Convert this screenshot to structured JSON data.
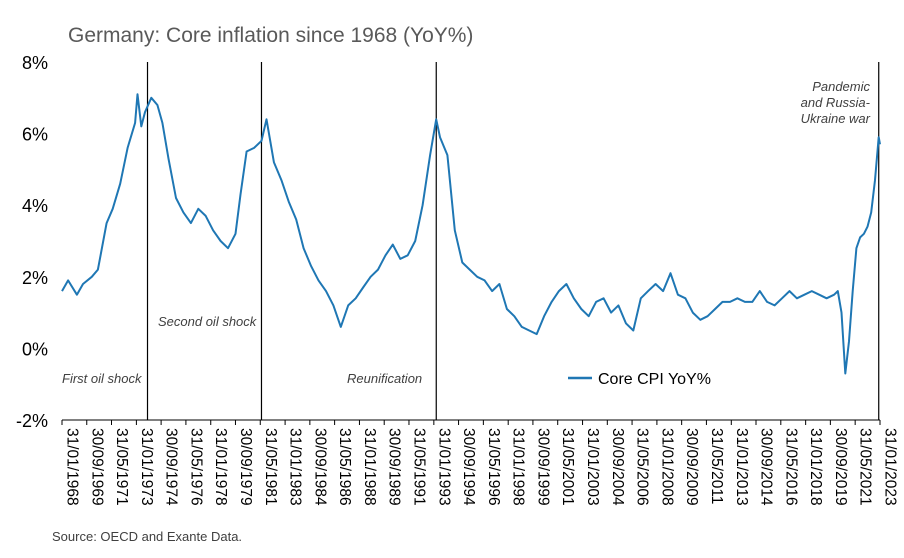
{
  "chart_data": {
    "type": "line",
    "title": "Germany: Core inflation since 1968 (YoY%)",
    "source": "Source: OECD and Exante Data.",
    "ylim": [
      -2,
      8
    ],
    "y_ticks": [
      "8%",
      "6%",
      "4%",
      "2%",
      "0%",
      "-2%"
    ],
    "y_tick_values": [
      8,
      6,
      4,
      2,
      0,
      -2
    ],
    "x_range": [
      "1968-01-31",
      "2023-01-31"
    ],
    "x_tick_labels": [
      "31/01/1968",
      "30/09/1969",
      "31/05/1971",
      "31/01/1973",
      "30/09/1974",
      "31/05/1976",
      "31/01/1978",
      "30/09/1979",
      "31/05/1981",
      "31/01/1983",
      "30/09/1984",
      "31/05/1986",
      "31/01/1988",
      "30/09/1989",
      "31/05/1991",
      "31/01/1993",
      "30/09/1994",
      "31/05/1996",
      "31/01/1998",
      "30/09/1999",
      "31/05/2001",
      "31/01/2003",
      "30/09/2004",
      "31/05/2006",
      "31/01/2008",
      "30/09/2009",
      "31/05/2011",
      "31/01/2013",
      "30/09/2014",
      "31/05/2016",
      "31/01/2018",
      "30/09/2019",
      "31/05/2021",
      "31/01/2023"
    ],
    "x_tick_dates": [
      "1968-01-31",
      "1969-09-30",
      "1971-05-31",
      "1973-01-31",
      "1974-09-30",
      "1976-05-31",
      "1978-01-31",
      "1979-09-30",
      "1981-05-31",
      "1983-01-31",
      "1984-09-30",
      "1986-05-31",
      "1988-01-31",
      "1989-09-30",
      "1991-05-31",
      "1993-01-31",
      "1994-09-30",
      "1996-05-31",
      "1998-01-31",
      "1999-09-30",
      "2001-05-31",
      "2003-01-31",
      "2004-09-30",
      "2006-05-31",
      "2008-01-31",
      "2009-09-30",
      "2011-05-31",
      "2013-01-31",
      "2014-09-30",
      "2016-05-31",
      "2018-01-31",
      "2019-09-30",
      "2021-05-31",
      "2023-01-31"
    ],
    "grid": false,
    "legend_position": "lower-right",
    "series": [
      {
        "name": "Core CPI YoY%",
        "color": "#1F77B4",
        "x": [
          "1968-01-31",
          "1968-06-30",
          "1969-01-31",
          "1969-06-30",
          "1970-01-31",
          "1970-06-30",
          "1971-01-31",
          "1971-06-30",
          "1971-12-31",
          "1972-06-30",
          "1972-12-31",
          "1973-02-28",
          "1973-05-31",
          "1973-08-31",
          "1974-01-31",
          "1974-06-30",
          "1974-10-31",
          "1975-03-31",
          "1975-09-30",
          "1976-03-31",
          "1976-09-30",
          "1977-03-31",
          "1977-09-30",
          "1978-03-31",
          "1978-09-30",
          "1979-03-31",
          "1979-09-30",
          "1980-01-31",
          "1980-06-30",
          "1980-12-31",
          "1981-06-30",
          "1981-10-31",
          "1982-04-30",
          "1982-10-31",
          "1983-04-30",
          "1983-10-31",
          "1984-04-30",
          "1984-10-31",
          "1985-04-30",
          "1985-10-31",
          "1986-04-30",
          "1986-10-31",
          "1987-04-30",
          "1987-10-31",
          "1988-04-30",
          "1988-10-31",
          "1989-04-30",
          "1989-10-31",
          "1990-04-30",
          "1990-10-31",
          "1991-04-30",
          "1991-10-31",
          "1992-04-30",
          "1992-10-31",
          "1993-03-31",
          "1993-06-30",
          "1993-12-31",
          "1994-06-30",
          "1994-12-31",
          "1995-06-30",
          "1995-12-31",
          "1996-06-30",
          "1996-12-31",
          "1997-06-30",
          "1997-12-31",
          "1998-06-30",
          "1998-12-31",
          "1999-06-30",
          "1999-12-31",
          "2000-06-30",
          "2000-12-31",
          "2001-06-30",
          "2001-12-31",
          "2002-06-30",
          "2002-12-31",
          "2003-06-30",
          "2003-12-31",
          "2004-06-30",
          "2004-12-31",
          "2005-06-30",
          "2005-12-31",
          "2006-06-30",
          "2006-12-31",
          "2007-06-30",
          "2007-12-31",
          "2008-06-30",
          "2008-12-31",
          "2009-06-30",
          "2009-12-31",
          "2010-06-30",
          "2010-12-31",
          "2011-06-30",
          "2011-12-31",
          "2012-06-30",
          "2012-12-31",
          "2013-06-30",
          "2013-12-31",
          "2014-06-30",
          "2014-12-31",
          "2015-06-30",
          "2015-12-31",
          "2016-06-30",
          "2016-12-31",
          "2017-06-30",
          "2017-12-31",
          "2018-06-30",
          "2018-12-31",
          "2019-06-30",
          "2019-12-31",
          "2020-03-31",
          "2020-06-30",
          "2020-09-30",
          "2020-12-31",
          "2021-03-31",
          "2021-06-30",
          "2021-09-30",
          "2021-12-31",
          "2022-03-31",
          "2022-06-30",
          "2022-09-30",
          "2022-12-31",
          "2023-01-31"
        ],
        "values": [
          1.6,
          1.9,
          1.5,
          1.8,
          2.0,
          2.2,
          3.5,
          3.9,
          4.6,
          5.6,
          6.3,
          7.1,
          6.2,
          6.6,
          7.0,
          6.8,
          6.3,
          5.3,
          4.2,
          3.8,
          3.5,
          3.9,
          3.7,
          3.3,
          3.0,
          2.8,
          3.2,
          4.3,
          5.5,
          5.6,
          5.8,
          6.4,
          5.2,
          4.7,
          4.1,
          3.6,
          2.8,
          2.3,
          1.9,
          1.6,
          1.2,
          0.6,
          1.2,
          1.4,
          1.7,
          2.0,
          2.2,
          2.6,
          2.9,
          2.5,
          2.6,
          3.0,
          4.0,
          5.4,
          6.4,
          5.9,
          5.4,
          3.3,
          2.4,
          2.2,
          2.0,
          1.9,
          1.6,
          1.8,
          1.1,
          0.9,
          0.6,
          0.5,
          0.4,
          0.9,
          1.3,
          1.6,
          1.8,
          1.4,
          1.1,
          0.9,
          1.3,
          1.4,
          1.0,
          1.2,
          0.7,
          0.5,
          1.4,
          1.6,
          1.8,
          1.6,
          2.1,
          1.5,
          1.4,
          1.0,
          0.8,
          0.9,
          1.1,
          1.3,
          1.3,
          1.4,
          1.3,
          1.3,
          1.6,
          1.3,
          1.2,
          1.4,
          1.6,
          1.4,
          1.5,
          1.6,
          1.5,
          1.4,
          1.5,
          1.6,
          1.0,
          -0.7,
          0.2,
          1.6,
          2.8,
          3.1,
          3.2,
          3.4,
          3.8,
          4.7,
          5.9,
          5.7
        ]
      }
    ],
    "annotations": [
      {
        "text": "First oil shock",
        "date": "1973-10-31"
      },
      {
        "text": "Second oil shock",
        "date": "1981-06-30"
      },
      {
        "text": "Reunification",
        "date": "1993-03-31"
      },
      {
        "text": "Pandemic and Russia-Ukraine war",
        "lines": [
          "Pandemic",
          "and Russia-",
          "Ukraine war"
        ],
        "date": "2022-12-31"
      }
    ]
  }
}
